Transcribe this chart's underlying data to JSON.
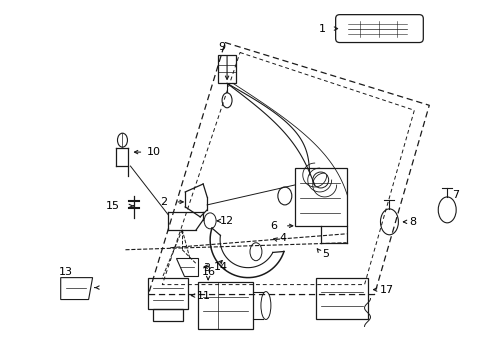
{
  "background_color": "#ffffff",
  "line_color": "#1a1a1a",
  "figsize": [
    4.89,
    3.6
  ],
  "dpi": 100,
  "door_outline": {
    "x": [
      0.455,
      0.88,
      0.76,
      0.3,
      0.455
    ],
    "y": [
      0.88,
      0.74,
      0.18,
      0.18,
      0.88
    ]
  },
  "door_inner": {
    "x": [
      0.455,
      0.76,
      0.68,
      0.35
    ],
    "y": [
      0.86,
      0.72,
      0.22,
      0.22
    ]
  }
}
